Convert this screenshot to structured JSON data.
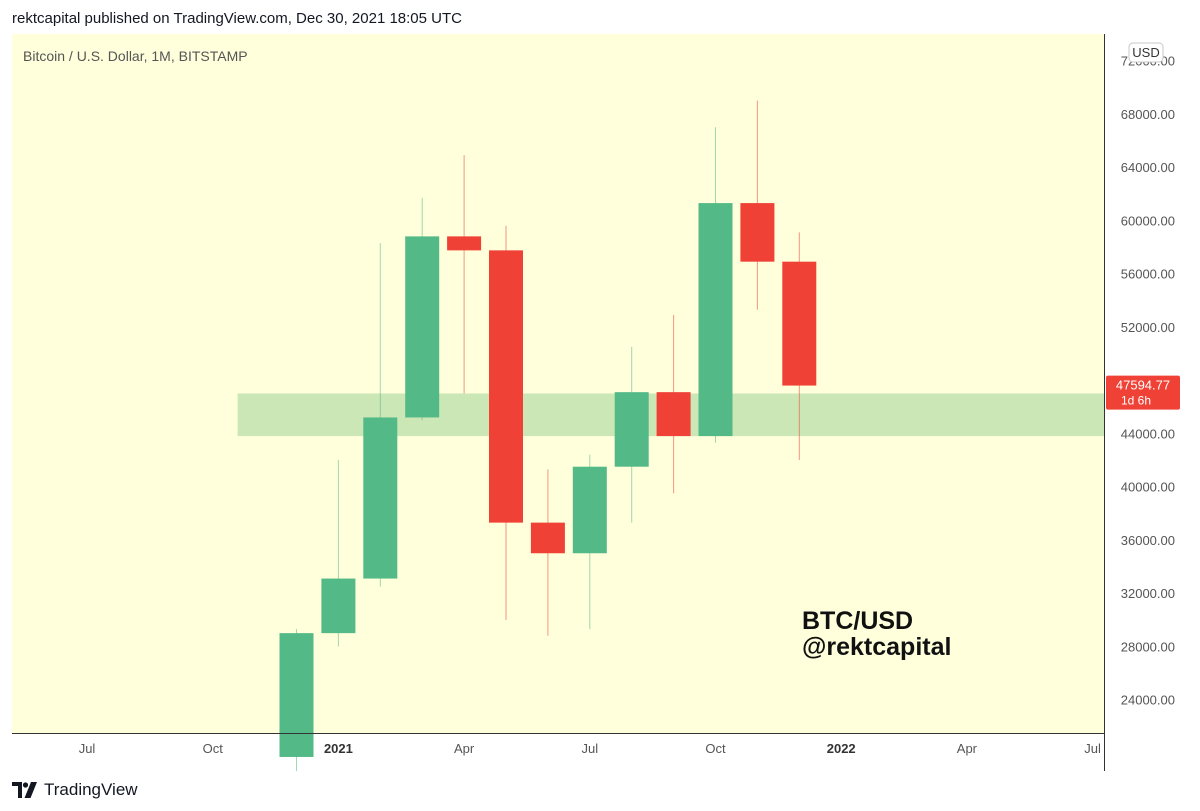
{
  "header": {
    "published_line": "rektcapital published on TradingView.com, Dec 30, 2021 18:05 UTC"
  },
  "footer": {
    "brand": "TradingView"
  },
  "chart_data": {
    "type": "candlestick",
    "title": "Bitcoin / U.S. Dollar, 1M, BITSTAMP",
    "currency_label": "USD",
    "watermark": [
      "BTC/USD",
      "@rektcapital"
    ],
    "ylim": [
      21500,
      74000
    ],
    "y_ticks": [
      24000,
      28000,
      32000,
      36000,
      40000,
      44000,
      48000,
      52000,
      56000,
      60000,
      64000,
      68000,
      72000
    ],
    "y_tick_labels": [
      "24000.00",
      "28000.00",
      "32000.00",
      "36000.00",
      "40000.00",
      "44000.00",
      "48000.00",
      "52000.00",
      "56000.00",
      "60000.00",
      "64000.00",
      "68000.00",
      "72000.00"
    ],
    "x_ticks": [
      "2020-07",
      "2020-10",
      "2021-01",
      "2021-04",
      "2021-07",
      "2021-10",
      "2022-01",
      "2022-04",
      "2022-07"
    ],
    "x_tick_labels": [
      "Jul",
      "Oct",
      "2021",
      "Apr",
      "Jul",
      "Oct",
      "2022",
      "Apr",
      "Jul"
    ],
    "bold_x_tick_labels": [
      "2021",
      "2022"
    ],
    "candles": [
      {
        "date": "2020-12",
        "open": 19700,
        "high": 29300,
        "low": 17600,
        "close": 29000
      },
      {
        "date": "2021-01",
        "open": 29000,
        "high": 42000,
        "low": 28000,
        "close": 33100
      },
      {
        "date": "2021-02",
        "open": 33100,
        "high": 58300,
        "low": 32500,
        "close": 45200
      },
      {
        "date": "2021-03",
        "open": 45200,
        "high": 61700,
        "low": 45000,
        "close": 58800
      },
      {
        "date": "2021-04",
        "open": 58800,
        "high": 64900,
        "low": 47000,
        "close": 57750
      },
      {
        "date": "2021-05",
        "open": 57750,
        "high": 59600,
        "low": 30000,
        "close": 37300
      },
      {
        "date": "2021-06",
        "open": 37300,
        "high": 41300,
        "low": 28800,
        "close": 35000
      },
      {
        "date": "2021-07",
        "open": 35000,
        "high": 42400,
        "low": 29300,
        "close": 41500
      },
      {
        "date": "2021-08",
        "open": 41500,
        "high": 50500,
        "low": 37300,
        "close": 47100
      },
      {
        "date": "2021-09",
        "open": 47100,
        "high": 52900,
        "low": 39500,
        "close": 43800
      },
      {
        "date": "2021-10",
        "open": 43800,
        "high": 67000,
        "low": 43300,
        "close": 61300
      },
      {
        "date": "2021-11",
        "open": 61300,
        "high": 69000,
        "low": 53300,
        "close": 56900
      },
      {
        "date": "2021-12",
        "open": 56900,
        "high": 59100,
        "low": 42000,
        "close": 47594.77
      }
    ],
    "support_zone": {
      "from_date": "2020-11",
      "low": 43800,
      "high": 47000,
      "color": "#c8e6b3"
    },
    "last_price_label": {
      "value": "47594.77",
      "countdown": "1d 6h",
      "color": "#ef4136"
    },
    "colors": {
      "background": "#ffffdc",
      "up": "#53b987",
      "down": "#ef4136",
      "axis_line": "#333333",
      "text": "#555555"
    },
    "grid": false
  }
}
